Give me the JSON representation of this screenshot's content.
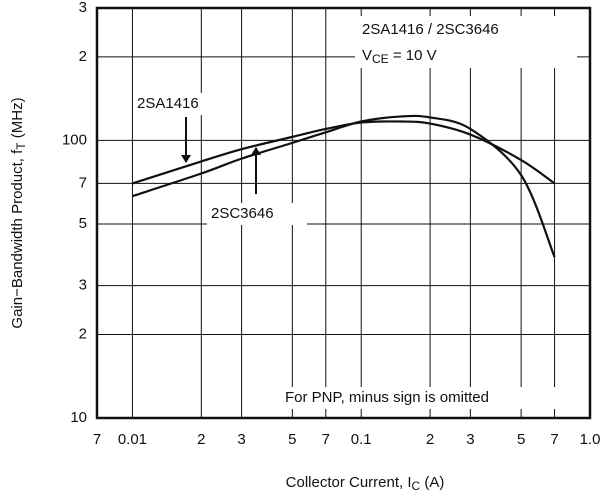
{
  "chart_data": {
    "type": "line",
    "x_label": [
      "Collector Current, I",
      "C",
      " (A)"
    ],
    "y_label": [
      "Gain−Bandwidth Product, f",
      "T",
      " (MHz)"
    ],
    "annotations": [
      "2SA1416 / 2SC3646",
      [
        "V",
        "CE",
        " = 10 V"
      ],
      "For PNP, minus sign is omitted"
    ],
    "x": [
      0.01,
      0.02,
      0.03,
      0.05,
      0.07,
      0.1,
      0.15,
      0.2,
      0.3,
      0.5,
      0.7
    ],
    "series": [
      {
        "name": "2SA1416",
        "color": "#111111",
        "values": [
          70,
          84,
          93,
          103,
          110,
          116,
          117,
          115,
          105,
          85,
          70
        ]
      },
      {
        "name": "2SC3646",
        "color": "#111111",
        "values": [
          63,
          76,
          86,
          98,
          107,
          117,
          122,
          121,
          110,
          75,
          38
        ]
      }
    ],
    "xlog": true,
    "ylog": true,
    "grid": true,
    "xlim": [
      0.007,
      1.0
    ],
    "ylim": [
      10,
      300
    ],
    "xticks": [
      {
        "value": 0.007,
        "label": "7"
      },
      0.01,
      {
        "value": 0.02,
        "label": "2"
      },
      {
        "value": 0.03,
        "label": "3"
      },
      {
        "value": 0.05,
        "label": "5"
      },
      {
        "value": 0.07,
        "label": "7"
      },
      0.1,
      {
        "value": 0.2,
        "label": "2"
      },
      {
        "value": 0.3,
        "label": "3"
      },
      {
        "value": 0.5,
        "label": "5"
      },
      {
        "value": 0.7,
        "label": "7"
      },
      {
        "value": 1.0,
        "label": "1.0"
      }
    ],
    "yticks": [
      10,
      {
        "value": 20,
        "label": "2"
      },
      {
        "value": 30,
        "label": "3"
      },
      {
        "value": 50,
        "label": "5"
      },
      {
        "value": 70,
        "label": "7"
      },
      100,
      {
        "value": 200,
        "label": "2"
      },
      {
        "value": 300,
        "label": "3"
      }
    ]
  }
}
